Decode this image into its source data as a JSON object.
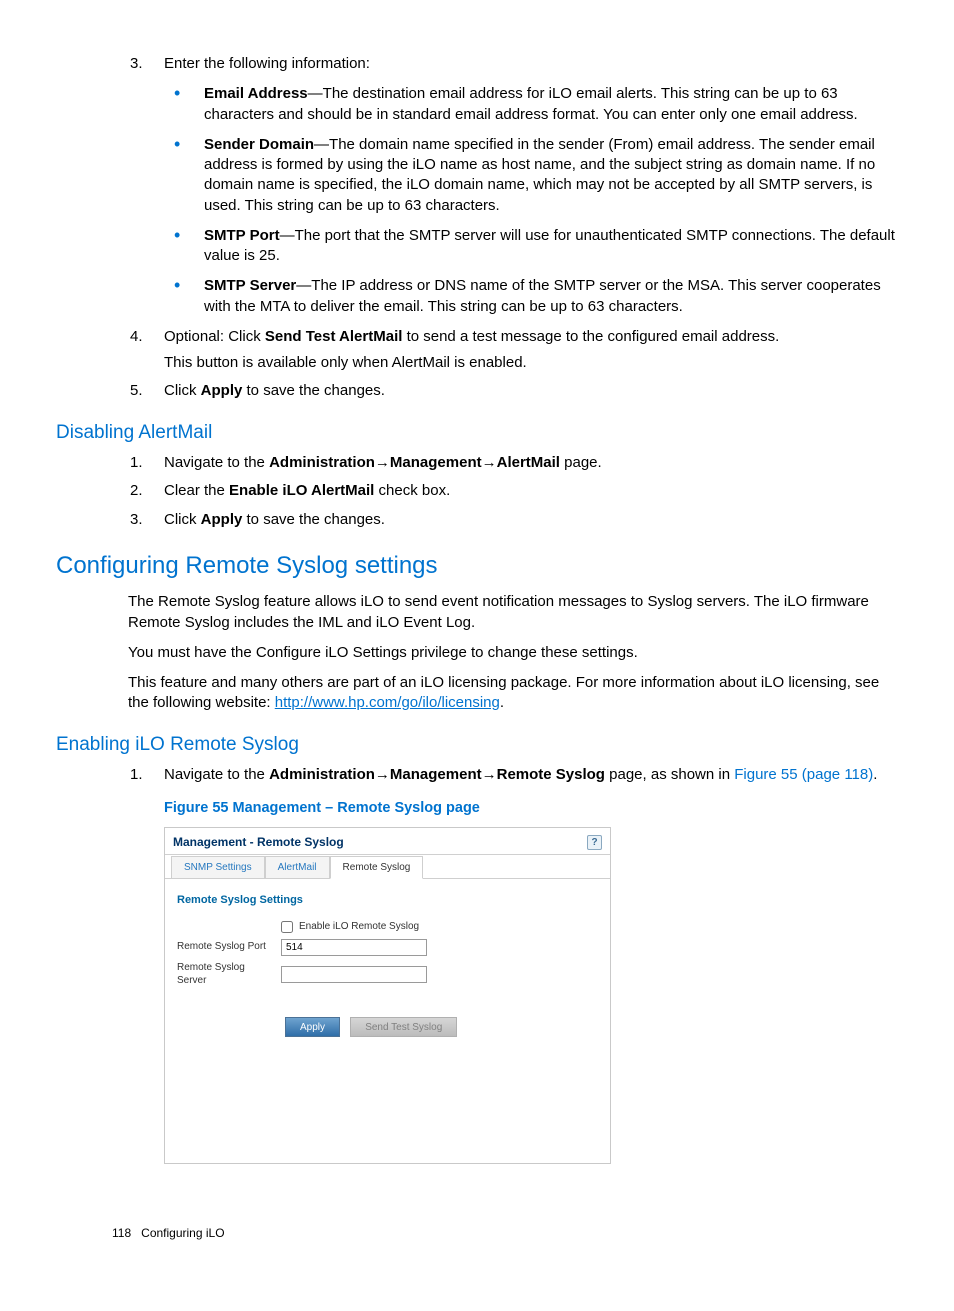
{
  "colors": {
    "accent": "#0073cf",
    "text": "#000000",
    "panel_border": "#c9c9c9",
    "tab_link": "#2678bf",
    "btn_grad_top": "#6fa3cf",
    "btn_grad_bottom": "#2f6ea8"
  },
  "step3": {
    "num": "3.",
    "text": "Enter the following information:",
    "bullets": [
      {
        "label": "Email Address",
        "text": "—The destination email address for iLO email alerts. This string can be up to 63 characters and should be in standard email address format. You can enter only one email address."
      },
      {
        "label": "Sender Domain",
        "text": "—The domain name specified in the sender (From) email address. The sender email address is formed by using the iLO name as host name, and the subject string as domain name. If no domain name is specified, the iLO domain name, which may not be accepted by all SMTP servers, is used. This string can be up to 63 characters."
      },
      {
        "label": "SMTP Port",
        "text": "—The port that the SMTP server will use for unauthenticated SMTP connections. The default value is 25."
      },
      {
        "label": "SMTP Server",
        "text": "—The IP address or DNS name of the SMTP server or the MSA. This server cooperates with the MTA to deliver the email. This string can be up to 63 characters."
      }
    ]
  },
  "step4": {
    "num": "4.",
    "pre": "Optional: Click ",
    "bold": "Send Test AlertMail",
    "post": " to send a test message to the configured email address.",
    "para2": "This button is available only when AlertMail is enabled."
  },
  "step5": {
    "num": "5.",
    "pre": "Click ",
    "bold": "Apply",
    "post": " to save the changes."
  },
  "disable_h": "Disabling AlertMail",
  "d1": {
    "num": "1.",
    "pre": "Navigate to the ",
    "b1": "Administration",
    "arr1": "→",
    "b2": "Management",
    "arr2": "→",
    "b3": "AlertMail",
    "post": " page."
  },
  "d2": {
    "num": "2.",
    "pre": "Clear the ",
    "bold": "Enable iLO AlertMail",
    "post": " check box."
  },
  "d3": {
    "num": "3.",
    "pre": "Click ",
    "bold": "Apply",
    "post": " to save the changes."
  },
  "cfg_h": "Configuring Remote Syslog settings",
  "cfg_p1": "The Remote Syslog feature allows iLO to send event notification messages to Syslog servers. The iLO firmware Remote Syslog includes the IML and iLO Event Log.",
  "cfg_p2": "You must have the Configure iLO Settings privilege to change these settings.",
  "cfg_p3_pre": "This feature and many others are part of an iLO licensing package. For more information about iLO licensing, see the following website: ",
  "cfg_p3_link": "http://www.hp.com/go/ilo/licensing",
  "cfg_p3_post": ".",
  "enable_h": "Enabling iLO Remote Syslog",
  "e1": {
    "num": "1.",
    "pre": "Navigate to the ",
    "b1": "Administration",
    "arr1": "→",
    "b2": "Management",
    "arr2": "→",
    "b3": "Remote Syslog",
    "mid": " page, as shown in ",
    "xref": "Figure 55 (page 118)",
    "post": "."
  },
  "fig_caption": "Figure 55 Management – Remote Syslog page",
  "shot": {
    "title": "Management - Remote Syslog",
    "help": "?",
    "tabs": {
      "t1": "SNMP Settings",
      "t2": "AlertMail",
      "t3": "Remote Syslog"
    },
    "panel_title": "Remote Syslog Settings",
    "chk_label": "Enable iLO Remote Syslog",
    "row_port_label": "Remote Syslog Port",
    "row_port_value": "514",
    "row_server_label": "Remote Syslog Server",
    "row_server_value": "",
    "btn_apply": "Apply",
    "btn_test": "Send Test Syslog"
  },
  "footer": {
    "pagenum": "118",
    "section": "Configuring iLO"
  }
}
